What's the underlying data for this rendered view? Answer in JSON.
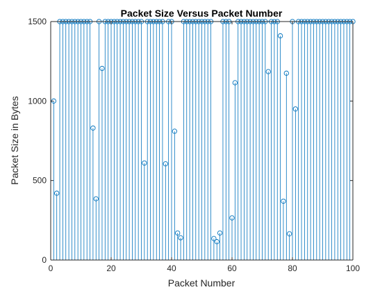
{
  "chart_data": {
    "type": "stem",
    "title": "Packet Size Versus Packet Number",
    "xlabel": "Packet Number",
    "ylabel": "Packet Size in Bytes",
    "xlim": [
      0,
      100
    ],
    "ylim": [
      0,
      1500
    ],
    "xticks": [
      0,
      20,
      40,
      60,
      80,
      100
    ],
    "yticks": [
      0,
      500,
      1000,
      1500
    ],
    "grid": false,
    "legend": "none",
    "color": "#0072BD",
    "x": [
      1,
      2,
      3,
      4,
      5,
      6,
      7,
      8,
      9,
      10,
      11,
      12,
      13,
      14,
      15,
      16,
      17,
      18,
      19,
      20,
      21,
      22,
      23,
      24,
      25,
      26,
      27,
      28,
      29,
      30,
      31,
      32,
      33,
      34,
      35,
      36,
      37,
      38,
      39,
      40,
      41,
      42,
      43,
      44,
      45,
      46,
      47,
      48,
      49,
      50,
      51,
      52,
      53,
      54,
      55,
      56,
      57,
      58,
      59,
      60,
      61,
      62,
      63,
      64,
      65,
      66,
      67,
      68,
      69,
      70,
      71,
      72,
      73,
      74,
      75,
      76,
      77,
      78,
      79,
      80,
      81,
      82,
      83,
      84,
      85,
      86,
      87,
      88,
      89,
      90,
      91,
      92,
      93,
      94,
      95,
      96,
      97,
      98,
      99,
      100
    ],
    "values": [
      1000,
      420,
      1500,
      1500,
      1500,
      1500,
      1500,
      1500,
      1500,
      1500,
      1500,
      1500,
      1500,
      830,
      385,
      1500,
      1205,
      1500,
      1500,
      1500,
      1500,
      1500,
      1500,
      1500,
      1500,
      1500,
      1500,
      1500,
      1500,
      1500,
      610,
      1500,
      1500,
      1500,
      1500,
      1500,
      1500,
      605,
      1500,
      1500,
      810,
      170,
      140,
      1500,
      1500,
      1500,
      1500,
      1500,
      1500,
      1500,
      1500,
      1500,
      1500,
      135,
      115,
      170,
      1500,
      1500,
      1500,
      265,
      1115,
      1500,
      1500,
      1500,
      1500,
      1500,
      1500,
      1500,
      1500,
      1500,
      1500,
      1185,
      1500,
      1500,
      1500,
      1410,
      370,
      1175,
      165,
      1500,
      950,
      1500,
      1500,
      1500,
      1500,
      1500,
      1500,
      1500,
      1500,
      1500,
      1500,
      1500,
      1500,
      1500,
      1500,
      1500,
      1500,
      1500,
      1500,
      1500
    ]
  }
}
